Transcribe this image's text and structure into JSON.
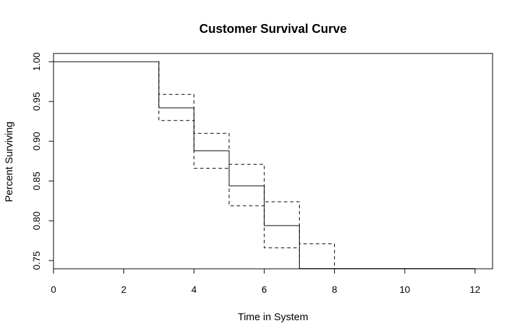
{
  "chart_data": {
    "type": "line",
    "title": "Customer Survival Curve",
    "xlabel": "Time in System",
    "ylabel": "Percent Surviving",
    "xlim": [
      0,
      12
    ],
    "ylim": [
      0.75,
      1.0
    ],
    "x_ticks": [
      "0",
      "2",
      "4",
      "6",
      "8",
      "10",
      "12"
    ],
    "y_ticks": [
      "0.75",
      "0.80",
      "0.85",
      "0.90",
      "0.95",
      "1.00"
    ],
    "grid": false,
    "legend": "none",
    "series": [
      {
        "style": "solid",
        "color": "#000000",
        "x": [
          0,
          3,
          3,
          4,
          4,
          5,
          5,
          6,
          6,
          7,
          7
        ],
        "y": [
          1.0,
          1.0,
          0.942,
          0.942,
          0.888,
          0.888,
          0.844,
          0.844,
          0.794,
          0.794,
          0.74
        ]
      },
      {
        "style": "dashed",
        "color": "#000000",
        "x": [
          0,
          3,
          3,
          4,
          4,
          5,
          5,
          6,
          6,
          7,
          7,
          8,
          8
        ],
        "y": [
          1.0,
          1.0,
          0.959,
          0.959,
          0.91,
          0.91,
          0.871,
          0.871,
          0.824,
          0.824,
          0.771,
          0.771,
          0.74
        ]
      },
      {
        "style": "dashed",
        "color": "#000000",
        "x": [
          0,
          3,
          3,
          4,
          4,
          5,
          5,
          6,
          6,
          7,
          7
        ],
        "y": [
          1.0,
          1.0,
          0.926,
          0.926,
          0.866,
          0.866,
          0.819,
          0.819,
          0.766,
          0.766,
          0.74
        ]
      },
      {
        "style": "solid",
        "color": "#000000",
        "x": [
          7,
          12
        ],
        "y": [
          0.74,
          0.74
        ]
      }
    ]
  }
}
